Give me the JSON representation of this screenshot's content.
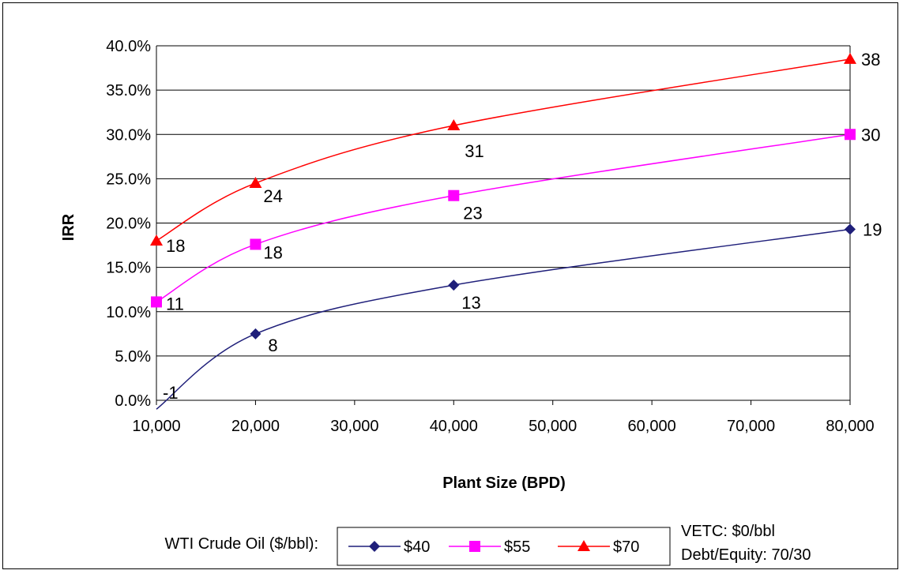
{
  "chart_data": {
    "type": "line",
    "xlabel": "Plant Size (BPD)",
    "ylabel": "IRR",
    "x_ticks": [
      "10,000",
      "20,000",
      "30,000",
      "40,000",
      "50,000",
      "60,000",
      "70,000",
      "80,000"
    ],
    "y_ticks": [
      "0.0%",
      "5.0%",
      "10.0%",
      "15.0%",
      "20.0%",
      "25.0%",
      "30.0%",
      "35.0%",
      "40.0%"
    ],
    "xlim": [
      10000,
      80000
    ],
    "ylim": [
      0,
      40
    ],
    "grid": "horizontal",
    "legend_position": "bottom",
    "legend_title": "WTI Crude Oil ($/bbl):",
    "annotations": [
      "VETC: $0/bbl",
      "Debt/Equity: 70/30"
    ],
    "series": [
      {
        "name": "$40",
        "color": "#1f1f7a",
        "marker": "diamond",
        "x": [
          10000,
          20000,
          40000,
          80000
        ],
        "y": [
          -1,
          7.5,
          13,
          19.3
        ],
        "labels": [
          "-1",
          "8",
          "13",
          "19"
        ]
      },
      {
        "name": "$55",
        "color": "#ff00ff",
        "marker": "square",
        "x": [
          10000,
          20000,
          40000,
          80000
        ],
        "y": [
          11.1,
          17.6,
          23.1,
          30.0
        ],
        "labels": [
          "11",
          "18",
          "23",
          "30"
        ]
      },
      {
        "name": "$70",
        "color": "#ff0000",
        "marker": "triangle",
        "x": [
          10000,
          20000,
          40000,
          80000
        ],
        "y": [
          18,
          24.5,
          31,
          38.5
        ],
        "labels": [
          "18",
          "24",
          "31",
          "38"
        ]
      }
    ]
  }
}
